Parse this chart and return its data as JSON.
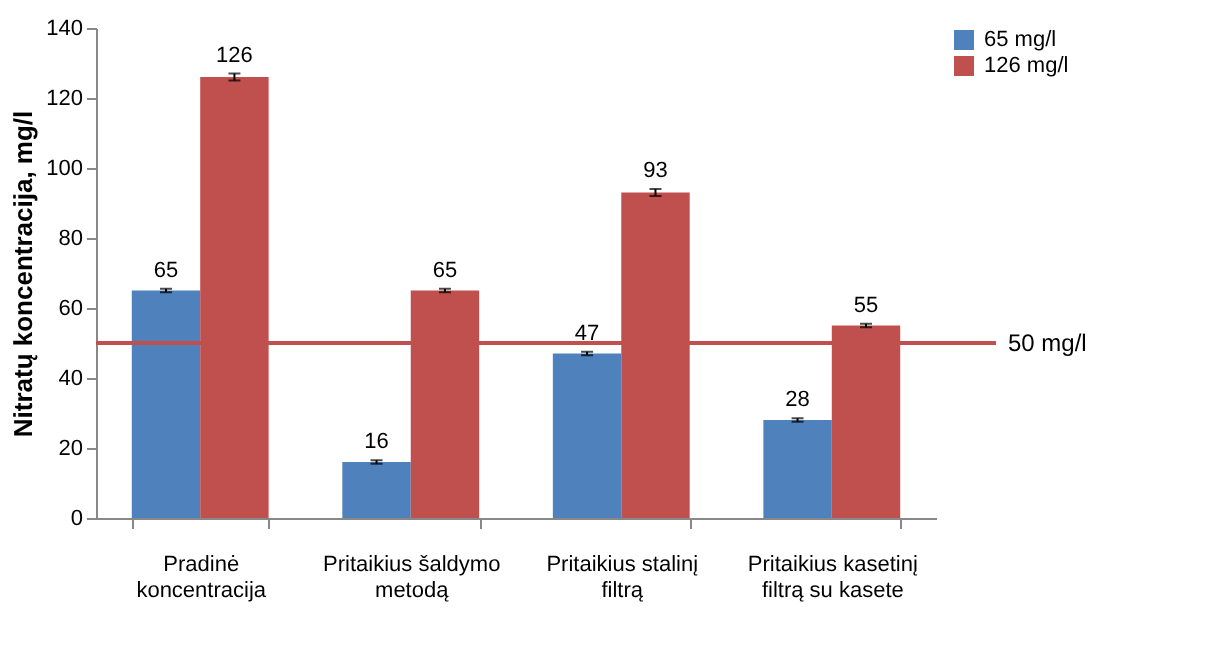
{
  "chart_data": {
    "type": "bar",
    "ylabel": "Nitratų koncentracija, mg/l",
    "categories": [
      "Pradinė koncentracija",
      "Pritaikius šaldymo metodą",
      "Pritaikius stalinį filtrą",
      "Pritaikius kasetinį filtrą su kasete"
    ],
    "series": [
      {
        "name": "65 mg/l",
        "color": "#4f81bd",
        "values": [
          65,
          16,
          47,
          28
        ],
        "errors": [
          0.5,
          0.5,
          0.5,
          0.5
        ]
      },
      {
        "name": "126 mg/l",
        "color": "#c0504d",
        "values": [
          126,
          65,
          93,
          55
        ],
        "errors": [
          1,
          0.5,
          1,
          0.5
        ]
      }
    ],
    "data_labels": true,
    "ylim": [
      0,
      140
    ],
    "yticks": [
      0,
      20,
      40,
      60,
      80,
      100,
      120,
      140
    ],
    "grid": false,
    "legend": "right",
    "ref_lines": [
      {
        "axis": "y",
        "value": 50,
        "label": "50 mg/l",
        "color": "#c0504d",
        "line_style": "solid"
      }
    ]
  }
}
